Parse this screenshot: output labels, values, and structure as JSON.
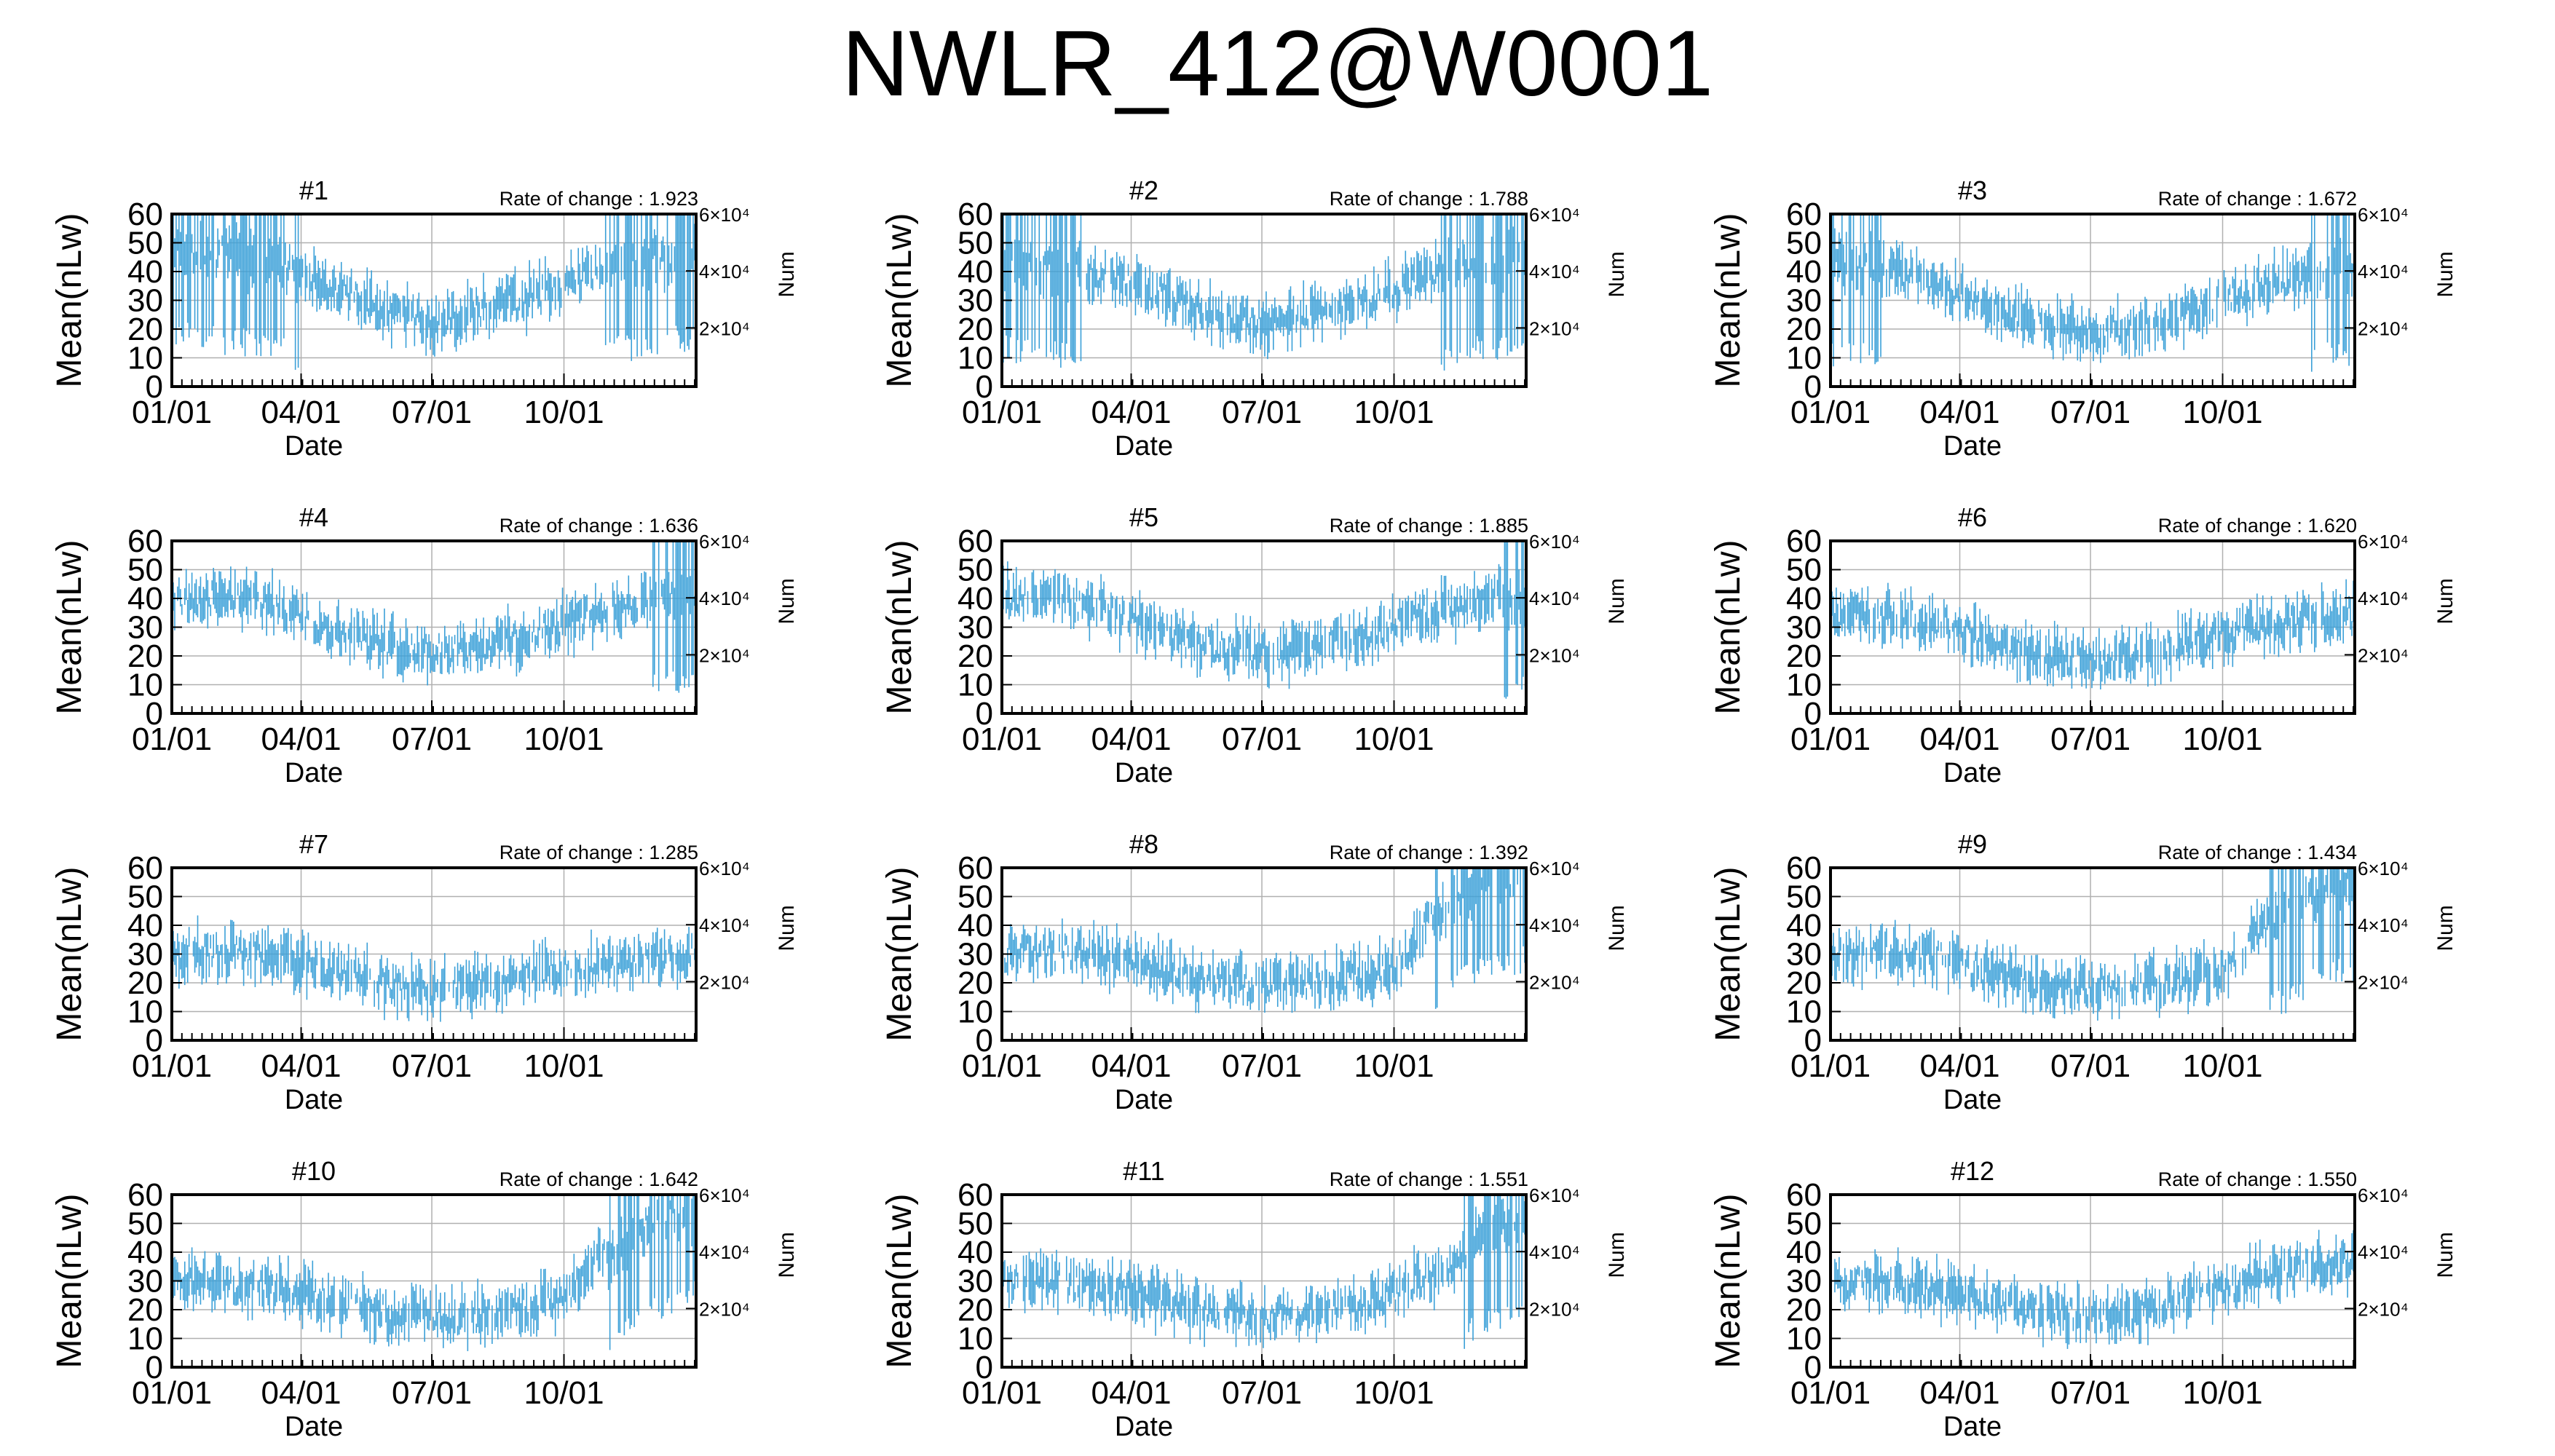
{
  "title": "NWLR_412@W0001",
  "colors": {
    "series": "#3ba0d8",
    "grid": "#b0b0b0",
    "frame": "#000000"
  },
  "chart_data": [
    {
      "type": "line",
      "title": "#1",
      "annotation": "Rate of change : 1.923",
      "xlabel": "Date",
      "ylabel": "Mean(nLw)",
      "y2label": "Num",
      "xticks": [
        "01/01",
        "04/01",
        "07/01",
        "10/01"
      ],
      "yticks": [
        "0",
        "10",
        "20",
        "30",
        "40",
        "50",
        "60"
      ],
      "y2ticks": [
        "2×10⁴",
        "4×10⁴",
        "6×10⁴"
      ],
      "ylim": [
        0,
        60
      ],
      "grid": true,
      "series": [
        {
          "x": [
            "01/01",
            "02/01",
            "03/01",
            "04/01",
            "05/01",
            "06/01",
            "07/01",
            "08/01",
            "09/01",
            "10/01",
            "11/01",
            "12/01",
            "12/31"
          ],
          "values": [
            48,
            46,
            45,
            40,
            33,
            26,
            22,
            27,
            30,
            35,
            42,
            45,
            47
          ]
        }
      ]
    },
    {
      "type": "line",
      "title": "#2",
      "annotation": "Rate of change : 1.788",
      "xlabel": "Date",
      "ylabel": "Mean(nLw)",
      "y2label": "Num",
      "xticks": [
        "01/01",
        "04/01",
        "07/01",
        "10/01"
      ],
      "yticks": [
        "0",
        "10",
        "20",
        "30",
        "40",
        "50",
        "60"
      ],
      "y2ticks": [
        "2×10⁴",
        "4×10⁴",
        "6×10⁴"
      ],
      "ylim": [
        0,
        60
      ],
      "grid": true,
      "series": [
        {
          "x": [
            "01/01",
            "02/01",
            "03/01",
            "04/01",
            "05/01",
            "06/01",
            "07/01",
            "08/01",
            "09/01",
            "10/01",
            "11/01",
            "12/01",
            "12/31"
          ],
          "values": [
            43,
            42,
            40,
            36,
            30,
            24,
            22,
            25,
            28,
            33,
            40,
            43,
            45
          ]
        }
      ]
    },
    {
      "type": "line",
      "title": "#3",
      "annotation": "Rate of change : 1.672",
      "xlabel": "Date",
      "ylabel": "Mean(nLw)",
      "y2label": "Num",
      "xticks": [
        "01/01",
        "04/01",
        "07/01",
        "10/01"
      ],
      "yticks": [
        "0",
        "10",
        "20",
        "30",
        "40",
        "50",
        "60"
      ],
      "y2ticks": [
        "2×10⁴",
        "4×10⁴",
        "6×10⁴"
      ],
      "ylim": [
        0,
        60
      ],
      "grid": true,
      "series": [
        {
          "x": [
            "01/01",
            "02/01",
            "03/01",
            "04/01",
            "05/01",
            "06/01",
            "07/01",
            "08/01",
            "09/01",
            "10/01",
            "11/01",
            "12/01",
            "12/31"
          ],
          "values": [
            42,
            41,
            38,
            32,
            26,
            22,
            19,
            21,
            24,
            30,
            36,
            40,
            42
          ]
        }
      ]
    },
    {
      "type": "line",
      "title": "#4",
      "annotation": "Rate of change : 1.636",
      "xlabel": "Date",
      "ylabel": "Mean(nLw)",
      "y2label": "Num",
      "xticks": [
        "01/01",
        "04/01",
        "07/01",
        "10/01"
      ],
      "yticks": [
        "0",
        "10",
        "20",
        "30",
        "40",
        "50",
        "60"
      ],
      "y2ticks": [
        "2×10⁴",
        "4×10⁴",
        "6×10⁴"
      ],
      "ylim": [
        0,
        60
      ],
      "grid": true,
      "series": [
        {
          "x": [
            "01/01",
            "02/01",
            "03/01",
            "04/01",
            "05/01",
            "06/01",
            "07/01",
            "08/01",
            "09/01",
            "10/01",
            "11/01",
            "12/01",
            "12/31"
          ],
          "values": [
            40,
            40,
            39,
            34,
            28,
            24,
            21,
            23,
            26,
            31,
            36,
            40,
            42
          ]
        }
      ]
    },
    {
      "type": "line",
      "title": "#5",
      "annotation": "Rate of change : 1.885",
      "xlabel": "Date",
      "ylabel": "Mean(nLw)",
      "y2label": "Num",
      "xticks": [
        "01/01",
        "04/01",
        "07/01",
        "10/01"
      ],
      "yticks": [
        "0",
        "10",
        "20",
        "30",
        "40",
        "50",
        "60"
      ],
      "y2ticks": [
        "2×10⁴",
        "4×10⁴",
        "6×10⁴"
      ],
      "ylim": [
        0,
        60
      ],
      "grid": true,
      "series": [
        {
          "x": [
            "01/01",
            "02/01",
            "03/01",
            "04/01",
            "05/01",
            "06/01",
            "07/01",
            "08/01",
            "09/01",
            "10/01",
            "11/01",
            "12/01",
            "12/31"
          ],
          "values": [
            40,
            40,
            38,
            33,
            27,
            23,
            21,
            22,
            26,
            31,
            36,
            39,
            41
          ]
        }
      ]
    },
    {
      "type": "line",
      "title": "#6",
      "annotation": "Rate of change : 1.620",
      "xlabel": "Date",
      "ylabel": "Mean(nLw)",
      "y2label": "Num",
      "xticks": [
        "01/01",
        "04/01",
        "07/01",
        "10/01"
      ],
      "yticks": [
        "0",
        "10",
        "20",
        "30",
        "40",
        "50",
        "60"
      ],
      "y2ticks": [
        "2×10⁴",
        "4×10⁴",
        "6×10⁴"
      ],
      "ylim": [
        0,
        60
      ],
      "grid": true,
      "series": [
        {
          "x": [
            "01/01",
            "02/01",
            "03/01",
            "04/01",
            "05/01",
            "06/01",
            "07/01",
            "08/01",
            "09/01",
            "10/01",
            "11/01",
            "12/01",
            "12/31"
          ],
          "values": [
            34,
            34,
            33,
            29,
            24,
            20,
            18,
            20,
            24,
            28,
            31,
            33,
            34
          ]
        }
      ]
    },
    {
      "type": "line",
      "title": "#7",
      "annotation": "Rate of change : 1.285",
      "xlabel": "Date",
      "ylabel": "Mean(nLw)",
      "y2label": "Num",
      "xticks": [
        "01/01",
        "04/01",
        "07/01",
        "10/01"
      ],
      "yticks": [
        "0",
        "10",
        "20",
        "30",
        "40",
        "50",
        "60"
      ],
      "y2ticks": [
        "2×10⁴",
        "4×10⁴",
        "6×10⁴"
      ],
      "ylim": [
        0,
        60
      ],
      "grid": true,
      "series": [
        {
          "x": [
            "01/01",
            "02/01",
            "03/01",
            "04/01",
            "05/01",
            "06/01",
            "07/01",
            "08/01",
            "09/01",
            "10/01",
            "11/01",
            "12/01",
            "12/31"
          ],
          "values": [
            31,
            31,
            30,
            27,
            23,
            19,
            17,
            19,
            22,
            25,
            27,
            29,
            30
          ]
        }
      ]
    },
    {
      "type": "line",
      "title": "#8",
      "annotation": "Rate of change : 1.392",
      "xlabel": "Date",
      "ylabel": "Mean(nLw)",
      "y2label": "Num",
      "xticks": [
        "01/01",
        "04/01",
        "07/01",
        "10/01"
      ],
      "yticks": [
        "0",
        "10",
        "20",
        "30",
        "40",
        "50",
        "60"
      ],
      "y2ticks": [
        "2×10⁴",
        "4×10⁴",
        "6×10⁴"
      ],
      "ylim": [
        0,
        60
      ],
      "grid": true,
      "series": [
        {
          "x": [
            "01/01",
            "02/01",
            "03/01",
            "04/01",
            "05/01",
            "06/01",
            "07/01",
            "08/01",
            "09/01",
            "10/01",
            "11/01",
            "12/01",
            "12/31"
          ],
          "values": [
            30,
            31,
            30,
            27,
            23,
            20,
            19,
            20,
            22,
            25,
            45,
            55,
            58
          ]
        }
      ]
    },
    {
      "type": "line",
      "title": "#9",
      "annotation": "Rate of change : 1.434",
      "xlabel": "Date",
      "ylabel": "Mean(nLw)",
      "y2label": "Num",
      "xticks": [
        "01/01",
        "04/01",
        "07/01",
        "10/01"
      ],
      "yticks": [
        "0",
        "10",
        "20",
        "30",
        "40",
        "50",
        "60"
      ],
      "y2ticks": [
        "2×10⁴",
        "4×10⁴",
        "6×10⁴"
      ],
      "ylim": [
        0,
        60
      ],
      "grid": true,
      "series": [
        {
          "x": [
            "01/01",
            "02/01",
            "03/01",
            "04/01",
            "05/01",
            "06/01",
            "07/01",
            "08/01",
            "09/01",
            "10/01",
            "11/01",
            "12/01",
            "12/31"
          ],
          "values": [
            30,
            31,
            30,
            26,
            22,
            19,
            18,
            19,
            21,
            24,
            40,
            50,
            55
          ]
        }
      ]
    },
    {
      "type": "line",
      "title": "#10",
      "annotation": "Rate of change : 1.642",
      "xlabel": "Date",
      "ylabel": "Mean(nLw)",
      "y2label": "Num",
      "xticks": [
        "01/01",
        "04/01",
        "07/01",
        "10/01"
      ],
      "yticks": [
        "0",
        "10",
        "20",
        "30",
        "40",
        "50",
        "60"
      ],
      "y2ticks": [
        "2×10⁴",
        "4×10⁴",
        "6×10⁴"
      ],
      "ylim": [
        0,
        60
      ],
      "grid": true,
      "series": [
        {
          "x": [
            "01/01",
            "02/01",
            "03/01",
            "04/01",
            "05/01",
            "06/01",
            "07/01",
            "08/01",
            "09/01",
            "10/01",
            "11/01",
            "12/01",
            "12/31"
          ],
          "values": [
            29,
            29,
            28,
            26,
            22,
            19,
            17,
            18,
            20,
            25,
            40,
            50,
            55
          ]
        }
      ]
    },
    {
      "type": "line",
      "title": "#11",
      "annotation": "Rate of change : 1.551",
      "xlabel": "Date",
      "ylabel": "Mean(nLw)",
      "y2label": "Num",
      "xticks": [
        "01/01",
        "04/01",
        "07/01",
        "10/01"
      ],
      "yticks": [
        "0",
        "10",
        "20",
        "30",
        "40",
        "50",
        "60"
      ],
      "y2ticks": [
        "2×10⁴",
        "4×10⁴",
        "6×10⁴"
      ],
      "ylim": [
        0,
        60
      ],
      "grid": true,
      "series": [
        {
          "x": [
            "01/01",
            "02/01",
            "03/01",
            "04/01",
            "05/01",
            "06/01",
            "07/01",
            "08/01",
            "09/01",
            "10/01",
            "11/01",
            "12/01",
            "12/31"
          ],
          "values": [
            30,
            30,
            29,
            26,
            22,
            19,
            17,
            19,
            22,
            26,
            33,
            45,
            52
          ]
        }
      ]
    },
    {
      "type": "line",
      "title": "#12",
      "annotation": "Rate of change : 1.550",
      "xlabel": "Date",
      "ylabel": "Mean(nLw)",
      "y2label": "Num",
      "xticks": [
        "01/01",
        "04/01",
        "07/01",
        "10/01"
      ],
      "yticks": [
        "0",
        "10",
        "20",
        "30",
        "40",
        "50",
        "60"
      ],
      "y2ticks": [
        "2×10⁴",
        "4×10⁴",
        "6×10⁴"
      ],
      "ylim": [
        0,
        60
      ],
      "grid": true,
      "series": [
        {
          "x": [
            "01/01",
            "02/01",
            "03/01",
            "04/01",
            "05/01",
            "06/01",
            "07/01",
            "08/01",
            "09/01",
            "10/01",
            "11/01",
            "12/01",
            "12/31"
          ],
          "values": [
            30,
            30,
            29,
            26,
            22,
            19,
            17,
            19,
            23,
            28,
            32,
            35,
            36
          ]
        }
      ]
    }
  ]
}
